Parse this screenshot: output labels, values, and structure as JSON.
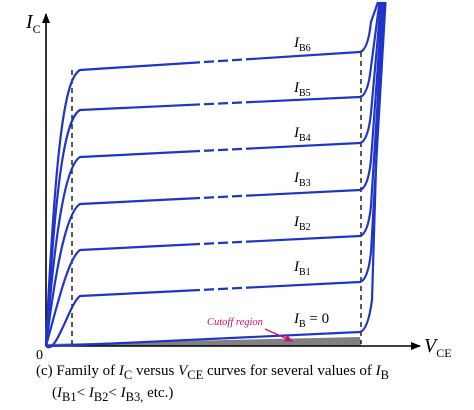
{
  "diagram": {
    "y_axis": {
      "label": "I",
      "label_sub": "C"
    },
    "x_axis": {
      "label": "V",
      "label_sub": "CE"
    },
    "origin_label": "0",
    "curves": [
      {
        "name": "I",
        "sub": "B6",
        "suffix": ""
      },
      {
        "name": "I",
        "sub": "B5",
        "suffix": ""
      },
      {
        "name": "I",
        "sub": "B4",
        "suffix": ""
      },
      {
        "name": "I",
        "sub": "B3",
        "suffix": ""
      },
      {
        "name": "I",
        "sub": "B2",
        "suffix": ""
      },
      {
        "name": "I",
        "sub": "B1",
        "suffix": ""
      },
      {
        "name": "I",
        "sub": "B",
        "suffix": " = 0"
      }
    ],
    "cutoff_label": "Cutoff region",
    "colors": {
      "curve": "#1f35c9",
      "cutoff_label": "#cc1166",
      "cutoff_fill": "#808080",
      "axis": "#000000"
    }
  },
  "caption": {
    "prefix": "(c) Family of ",
    "ic_main": "I",
    "ic_sub": "C",
    "middle": " versus ",
    "vce_main": "V",
    "vce_sub": "CE",
    "middle2": " curves for several values of ",
    "ib_main": "I",
    "ib_sub": "B",
    "line2_open": "(",
    "ib1_main": "I",
    "ib1_sub": "B1",
    "lt1": "< ",
    "ib2_main": "I",
    "ib2_sub": "B2",
    "lt2": "< ",
    "ib3_main": "I",
    "ib3_sub": "B3,",
    "line2_close": " etc.)"
  }
}
